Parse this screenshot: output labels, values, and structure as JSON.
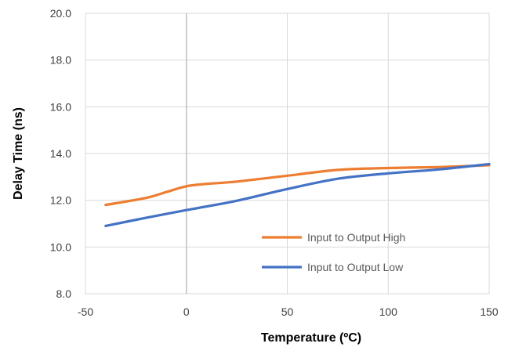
{
  "chart_data": {
    "type": "line",
    "xlabel": "Temperature (ºC)",
    "ylabel": "Delay Time (ns)",
    "xlim": [
      -50,
      150
    ],
    "ylim": [
      8.0,
      20.0
    ],
    "x_ticks": [
      "-50",
      "0",
      "50",
      "100",
      "150"
    ],
    "y_ticks": [
      "8.0",
      "10.0",
      "12.0",
      "14.0",
      "16.0",
      "18.0",
      "20.0"
    ],
    "grid": true,
    "legend_position": "bottom-right inside plot",
    "series": [
      {
        "name": "Input to Output High",
        "color": "#ED7D31",
        "x": [
          -40,
          -20,
          -10,
          0,
          10,
          25,
          50,
          75,
          100,
          125,
          150
        ],
        "y": [
          11.8,
          12.1,
          12.35,
          12.6,
          12.7,
          12.8,
          13.05,
          13.3,
          13.38,
          13.42,
          13.5
        ]
      },
      {
        "name": "Input to Output Low",
        "color": "#4472C4",
        "x": [
          -40,
          -20,
          0,
          25,
          50,
          75,
          100,
          125,
          150
        ],
        "y": [
          10.9,
          11.25,
          11.58,
          11.98,
          12.48,
          12.92,
          13.15,
          13.32,
          13.55
        ]
      }
    ]
  }
}
